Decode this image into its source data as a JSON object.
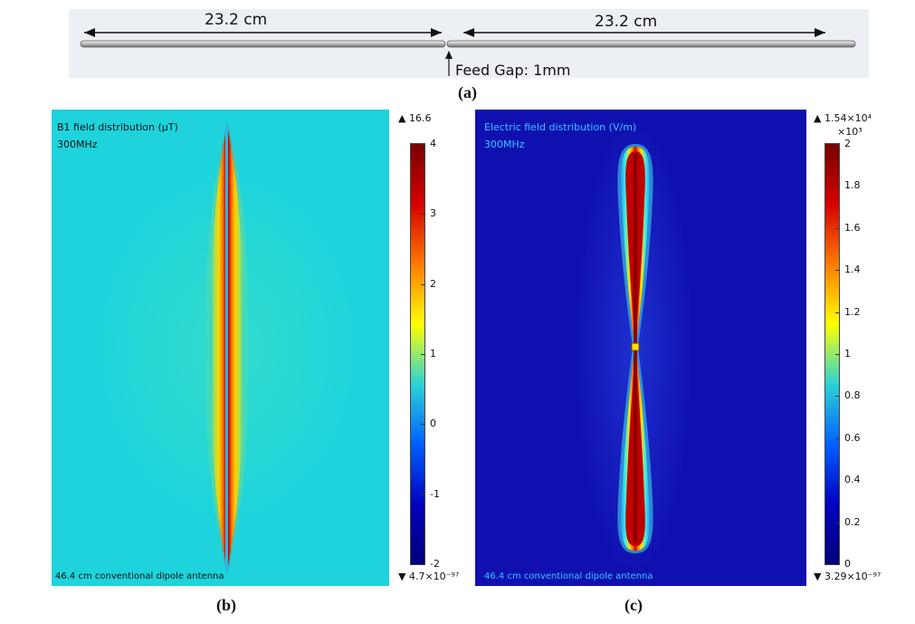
{
  "panel_a": {
    "dimension_left": "23.2 cm",
    "dimension_right": "23.2 cm",
    "feed_gap": "Feed Gap: 1mm",
    "label": "(a)"
  },
  "panel_b": {
    "title": "B1 field distribution (μT)",
    "frequency": "300MHz",
    "caption": "46.4 cm conventional dipole antenna",
    "label": "(b)",
    "colorbar": {
      "max_indicator": "▲ 16.6",
      "min_indicator": "▼ 4.7×10⁻⁹⁷",
      "ticks": [
        "4",
        "3",
        "2",
        "1",
        "0",
        "-1",
        "-2"
      ],
      "colormap": [
        "#7a0000",
        "#d40000",
        "#ff7a00",
        "#ffff00",
        "#2ad4d4",
        "#0060ff",
        "#0000c0",
        "#00007a"
      ]
    }
  },
  "panel_c": {
    "title": "Electric field distribution (V/m)",
    "frequency": "300MHz",
    "caption": "46.4 cm conventional dipole antenna",
    "label": "(c)",
    "colorbar": {
      "max_indicator": "▲ 1.54×10⁴",
      "scale": "×10³",
      "min_indicator": "▼ 3.29×10⁻⁹⁷",
      "ticks": [
        "2",
        "1.8",
        "1.6",
        "1.4",
        "1.2",
        "1",
        "0.8",
        "0.6",
        "0.4",
        "0.2",
        "0"
      ],
      "colormap": [
        "#7a0000",
        "#d40000",
        "#ff7a00",
        "#ffff00",
        "#2ad4d4",
        "#0060ff",
        "#0000c0",
        "#00007a"
      ]
    }
  },
  "colors": {
    "b_background": "#1ed3dc",
    "c_background": "#1010b0",
    "map_text_b": "#111111",
    "map_text_c": "#33c6ff"
  }
}
